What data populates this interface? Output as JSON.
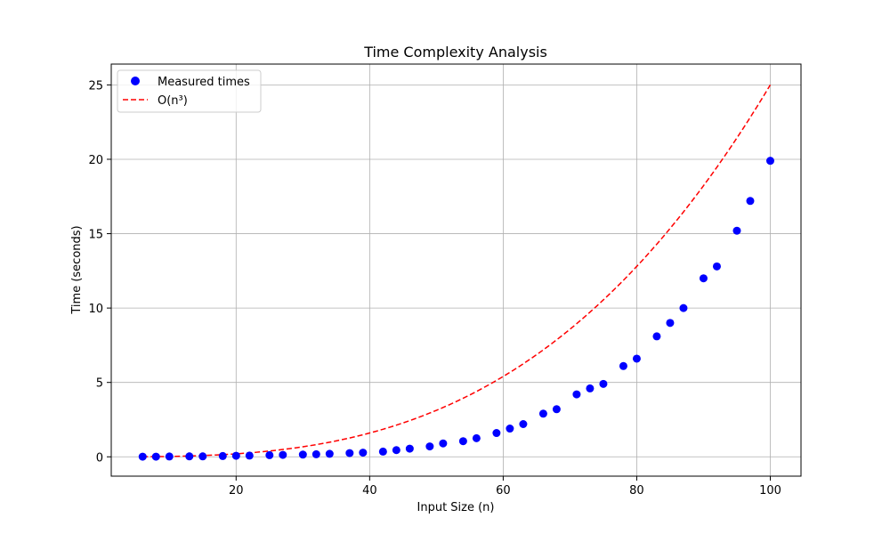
{
  "chart_data": {
    "type": "scatter",
    "title": "Time Complexity Analysis",
    "xlabel": "Input Size (n)",
    "ylabel": "Time (seconds)",
    "xlim": [
      1.3,
      104.6
    ],
    "ylim": [
      -1.3,
      26.4
    ],
    "xticks": [
      20,
      40,
      60,
      80,
      100
    ],
    "yticks": [
      0,
      5,
      10,
      15,
      20,
      25
    ],
    "grid": true,
    "legend_position": "top-left",
    "series": [
      {
        "name": "Measured times",
        "kind": "scatter",
        "color": "#0000ff",
        "x": [
          6,
          8,
          10,
          13,
          15,
          18,
          20,
          22,
          25,
          27,
          30,
          32,
          34,
          37,
          39,
          42,
          44,
          46,
          49,
          51,
          54,
          56,
          59,
          61,
          63,
          66,
          68,
          71,
          73,
          75,
          78,
          80,
          83,
          85,
          87,
          90,
          92,
          95,
          97,
          100
        ],
        "y": [
          0.01,
          0.01,
          0.02,
          0.03,
          0.03,
          0.05,
          0.07,
          0.08,
          0.11,
          0.13,
          0.15,
          0.17,
          0.2,
          0.25,
          0.28,
          0.35,
          0.45,
          0.55,
          0.7,
          0.9,
          1.05,
          1.25,
          1.6,
          1.9,
          2.2,
          2.9,
          3.2,
          4.2,
          4.6,
          4.9,
          6.1,
          6.6,
          8.1,
          9.0,
          10.0,
          12.0,
          12.8,
          15.2,
          17.2,
          19.9
        ]
      },
      {
        "name": "O(n³)",
        "kind": "line",
        "color": "#ff0000",
        "dash": "dashed",
        "formula": "2.5e-5 * n^3",
        "x_range": [
          6,
          100
        ]
      }
    ]
  }
}
